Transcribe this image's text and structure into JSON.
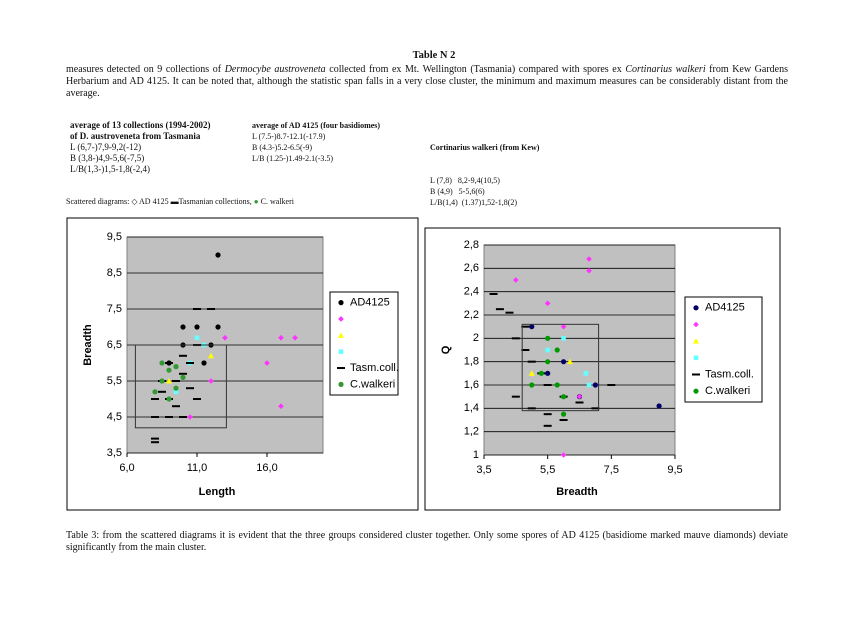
{
  "title": "Table N 2",
  "intro": [
    "measures detected on 9 collections of ",
    "Dermocybe austroveneta",
    " collected from ex Mt. Wellington (Tasmania) compared with spores ex ",
    "Cortinarius walkeri",
    " from Kew Gardens Herbarium and AD 4125. It can be noted that, although the statistic span falls in a very close cluster, the minimum and maximum measures can be considerably distant from the average."
  ],
  "columns": [
    {
      "heading": [
        "average of 13 collections (1994-2002)",
        "of D. austroveneta from Tasmania"
      ],
      "lines": [
        "L (6,7-)7,9-9,2(-12)",
        "B (3,8-)4,9-5,6(-7,5)",
        "L/B(1,3-)1,5-1,8(-2,4)"
      ]
    },
    {
      "heading": [
        "average of AD 4125 (four basidiomes)"
      ],
      "lines": [
        "L (7.5-)8.7-12.1(-17.9)",
        "B (4.3-)5.2-6.5(-9)",
        "L/B (1.25-)1.49-2.1(-3.5)"
      ]
    },
    {
      "heading": [
        "Cortinarius walkeri (from Kew)"
      ],
      "lines": [
        "L (7,8)   8,2-9,4(10,5)",
        "B (4,9)   5-5,6(6)",
        "L/B(1,4)  (1.37)1,52-1,8(2)"
      ]
    }
  ],
  "legend_line": [
    "Scattered diagrams:",
    "AD 4125",
    "Tasmanian collections,",
    "C. walkeri"
  ],
  "caption": "Table 3: from the scattered diagrams it is evident that the three groups considered cluster together. Only some spores of AD 4125 (basidiome marked mauve diamonds) deviate significantly from the main cluster.",
  "chart_data": [
    {
      "type": "scatter",
      "x_label": "Length",
      "y_label": "Breadth",
      "grid": true,
      "xlim": [
        6,
        20
      ],
      "xticks": [
        {
          "value": 6,
          "label": "6,0"
        },
        {
          "value": 11,
          "label": "11,0"
        },
        {
          "value": 16,
          "label": "16,0"
        }
      ],
      "ylim": [
        3.5,
        9.5
      ],
      "yticks": [
        {
          "value": 3.5,
          "label": "3,5"
        },
        {
          "value": 4.5,
          "label": "4,5"
        },
        {
          "value": 5.5,
          "label": "5,5"
        },
        {
          "value": 6.5,
          "label": "6,5"
        },
        {
          "value": 7.5,
          "label": "7,5"
        },
        {
          "value": 8.5,
          "label": "8,5"
        },
        {
          "value": 9.5,
          "label": "9,5"
        }
      ],
      "series": [
        {
          "name": "AD4125",
          "color": "#000000",
          "marker": "circle",
          "x": [
            12.5,
            10,
            11,
            12,
            9,
            10,
            11.5,
            12.5
          ],
          "y": [
            9,
            7,
            7,
            6.5,
            6,
            6.5,
            6,
            7
          ]
        },
        {
          "name": null,
          "color": "#ff33ff",
          "marker": "diamond",
          "x": [
            17,
            18,
            16,
            17,
            13,
            12,
            10.5
          ],
          "y": [
            6.7,
            6.7,
            6,
            4.8,
            6.7,
            5.5,
            4.5
          ]
        },
        {
          "name": null,
          "color": "#ffff00",
          "marker": "triangle",
          "x": [
            12,
            9
          ],
          "y": [
            6.2,
            5.5
          ]
        },
        {
          "name": null,
          "color": "#66ffff",
          "marker": "square",
          "x": [
            11,
            10.5,
            11.5,
            9.5
          ],
          "y": [
            6.7,
            6,
            6.5,
            5.2
          ]
        },
        {
          "name": "Tasm.coll.",
          "color": "#000000",
          "marker": "dash",
          "x": [
            8,
            8.5,
            9,
            9.5,
            10,
            10.5,
            11,
            8,
            9,
            10,
            8.5,
            9,
            10,
            11,
            12,
            8,
            8,
            11,
            9.5,
            10.5
          ],
          "y": [
            5,
            5.2,
            5,
            5.5,
            5.7,
            6,
            6.5,
            4.5,
            4.5,
            4.5,
            5.5,
            6,
            6.2,
            7.5,
            7.5,
            3.8,
            3.9,
            5,
            4.8,
            5.3
          ]
        },
        {
          "name": "C.walkeri",
          "color": "#339933",
          "marker": "circle",
          "x": [
            8.5,
            9,
            9.5,
            8,
            9,
            10,
            8.5,
            9.5
          ],
          "y": [
            5.5,
            5.8,
            5.3,
            5.2,
            5,
            5.6,
            6,
            5.9
          ]
        }
      ]
    },
    {
      "type": "scatter",
      "x_label": "Breadth",
      "y_label": "Q",
      "grid": true,
      "xlim": [
        3.5,
        9.5
      ],
      "xticks": [
        {
          "value": 3.5,
          "label": "3,5"
        },
        {
          "value": 5.5,
          "label": "5,5"
        },
        {
          "value": 7.5,
          "label": "7,5"
        },
        {
          "value": 9.5,
          "label": "9,5"
        }
      ],
      "ylim": [
        1,
        2.8
      ],
      "yticks": [
        1,
        {
          "value": 1.2,
          "label": "1,2"
        },
        {
          "value": 1.4,
          "label": "1,4"
        },
        {
          "value": 1.6,
          "label": "1,6"
        },
        {
          "value": 1.8,
          "label": "1,8"
        },
        2,
        {
          "value": 2.2,
          "label": "2,2"
        },
        {
          "value": 2.4,
          "label": "2,4"
        },
        {
          "value": 2.6,
          "label": "2,6"
        },
        {
          "value": 2.8,
          "label": "2,8"
        }
      ],
      "series": [
        {
          "name": "AD4125",
          "color": "#000066",
          "marker": "circle",
          "x": [
            9,
            7,
            6.5,
            5,
            6,
            5.5
          ],
          "y": [
            1.42,
            1.6,
            1.5,
            2.1,
            1.8,
            1.7
          ]
        },
        {
          "name": null,
          "color": "#ff33ff",
          "marker": "diamond",
          "x": [
            6.8,
            6.8,
            4.5,
            5.5,
            6,
            6.5,
            6
          ],
          "y": [
            2.68,
            2.58,
            2.5,
            2.3,
            2.1,
            1.5,
            1
          ]
        },
        {
          "name": null,
          "color": "#ffff00",
          "marker": "triangle",
          "x": [
            6.2,
            5
          ],
          "y": [
            1.8,
            1.7
          ]
        },
        {
          "name": null,
          "color": "#66ffff",
          "marker": "square",
          "x": [
            6.7,
            6,
            5.5,
            6.8
          ],
          "y": [
            1.7,
            2,
            1.9,
            1.6
          ]
        },
        {
          "name": "Tasm.coll.",
          "color": "#000000",
          "marker": "dash",
          "x": [
            3.8,
            4,
            4.3,
            4.5,
            4.8,
            5,
            5.3,
            5.5,
            6,
            6.5,
            7,
            4.5,
            5,
            5.5,
            6,
            4.8,
            5.5,
            7.5
          ],
          "y": [
            2.38,
            2.25,
            2.22,
            2,
            1.9,
            1.8,
            1.7,
            1.6,
            1.5,
            1.45,
            1.4,
            1.5,
            1.4,
            1.35,
            1.3,
            2.1,
            1.25,
            1.6
          ]
        },
        {
          "name": "C.walkeri",
          "color": "#009900",
          "marker": "circle",
          "x": [
            5.5,
            5.3,
            5.8,
            6,
            5.5,
            5,
            6,
            5.8
          ],
          "y": [
            1.8,
            1.7,
            1.6,
            1.5,
            2,
            1.6,
            1.35,
            1.9
          ]
        }
      ]
    }
  ]
}
